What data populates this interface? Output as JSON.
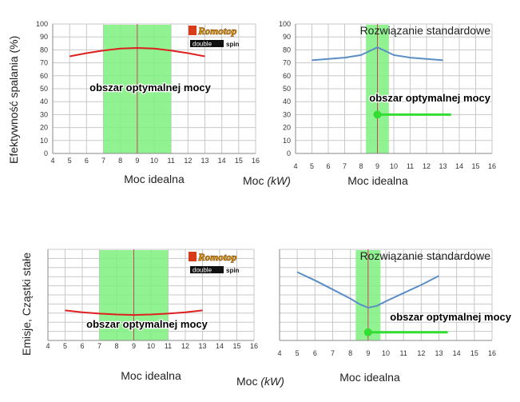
{
  "figure": {
    "y_label_top": "Efektywność spalania  (%)",
    "y_label_bottom": "Emisje, Cząstki stałe",
    "x_label_shared_top": "Moc (kW)",
    "x_label_shared_bottom": "Moc (kW)",
    "logo": {
      "brand": "Romotop",
      "sub_left": "double",
      "sub_right": "spin",
      "brand_color": "#e8a800",
      "sub_bg": "#111111"
    }
  },
  "colors": {
    "red_line": "#e02020",
    "blue_line": "#5b8ec4",
    "band": "#7ef07e",
    "marker": "#33dd33",
    "center_line": "#d04060"
  },
  "chart_data": [
    {
      "type": "line",
      "title": "",
      "xlabel": "Moc idealna",
      "ylabel": "Efektywność spalania  (%)",
      "xlim": [
        4,
        16
      ],
      "ylim": [
        0,
        100
      ],
      "x_ticks": [
        4,
        5,
        6,
        7,
        8,
        9,
        10,
        11,
        12,
        13,
        14,
        15,
        16
      ],
      "y_ticks": [
        0,
        10,
        20,
        30,
        40,
        50,
        60,
        70,
        80,
        90,
        100
      ],
      "grid": true,
      "optimal_band": [
        7,
        11
      ],
      "optimal_label": "obszar optymalnej mocy",
      "ideal_marker_x": 9,
      "series": [
        {
          "color": "red",
          "x": [
            5,
            6,
            7,
            8,
            9,
            10,
            11,
            12,
            13
          ],
          "y": [
            75,
            77.5,
            79.5,
            81,
            81.5,
            81,
            79.5,
            77.5,
            75
          ]
        }
      ]
    },
    {
      "type": "line",
      "title": "Rozwiązanie standardowe",
      "xlabel": "Moc idealna",
      "xlim": [
        4,
        16
      ],
      "ylim": [
        0,
        100
      ],
      "x_ticks": [
        4,
        5,
        6,
        7,
        8,
        9,
        10,
        11,
        12,
        13,
        14,
        15,
        16
      ],
      "y_ticks": [
        0,
        10,
        20,
        30,
        40,
        50,
        60,
        70,
        80,
        90,
        100
      ],
      "grid": true,
      "optimal_band": [
        8.3,
        9.7
      ],
      "optimal_label": "obszar optymalnej mocy",
      "ideal_marker_x": 9,
      "marker_y": 30,
      "marker_line_x": [
        9,
        13.5
      ],
      "series": [
        {
          "color": "blue",
          "x": [
            5,
            6,
            7,
            8,
            8.5,
            9,
            9.5,
            10,
            11,
            12,
            13
          ],
          "y": [
            72,
            73,
            74,
            76,
            79,
            82,
            79,
            76,
            74,
            73,
            72
          ]
        }
      ]
    },
    {
      "type": "line",
      "title": "",
      "xlabel": "Moc idealna",
      "ylabel": "Emisje, Cząstki stałe",
      "xlim": [
        4,
        16
      ],
      "ylim": [
        0,
        100
      ],
      "x_ticks": [
        4,
        5,
        6,
        7,
        8,
        9,
        10,
        11,
        12,
        13,
        14,
        15,
        16
      ],
      "grid": true,
      "optimal_band": [
        7,
        11
      ],
      "optimal_label": "obszar optymalnej mocy",
      "ideal_marker_x": 9,
      "series": [
        {
          "color": "red",
          "x": [
            5,
            6,
            7,
            8,
            9,
            10,
            11,
            12,
            13
          ],
          "y": [
            33,
            31,
            29.5,
            28.5,
            28,
            28.5,
            29.5,
            31,
            33
          ]
        }
      ]
    },
    {
      "type": "line",
      "title": "Rozwiązanie standardowe",
      "xlabel": "Moc idealna",
      "xlim": [
        4,
        16
      ],
      "ylim": [
        0,
        100
      ],
      "x_ticks": [
        4,
        5,
        6,
        7,
        8,
        9,
        10,
        11,
        12,
        13,
        14,
        15,
        16
      ],
      "grid": true,
      "optimal_band": [
        8.3,
        9.7
      ],
      "optimal_label": "obszar optymalnej mocy",
      "ideal_marker_x": 9,
      "marker_y": 9,
      "marker_line_x": [
        9,
        13.5
      ],
      "series": [
        {
          "color": "blue",
          "x": [
            5,
            6,
            7,
            8,
            8.5,
            9,
            9.5,
            10,
            11,
            12,
            13
          ],
          "y": [
            75,
            66,
            56,
            46,
            40,
            36,
            38,
            43,
            52,
            61,
            71
          ]
        }
      ]
    }
  ]
}
